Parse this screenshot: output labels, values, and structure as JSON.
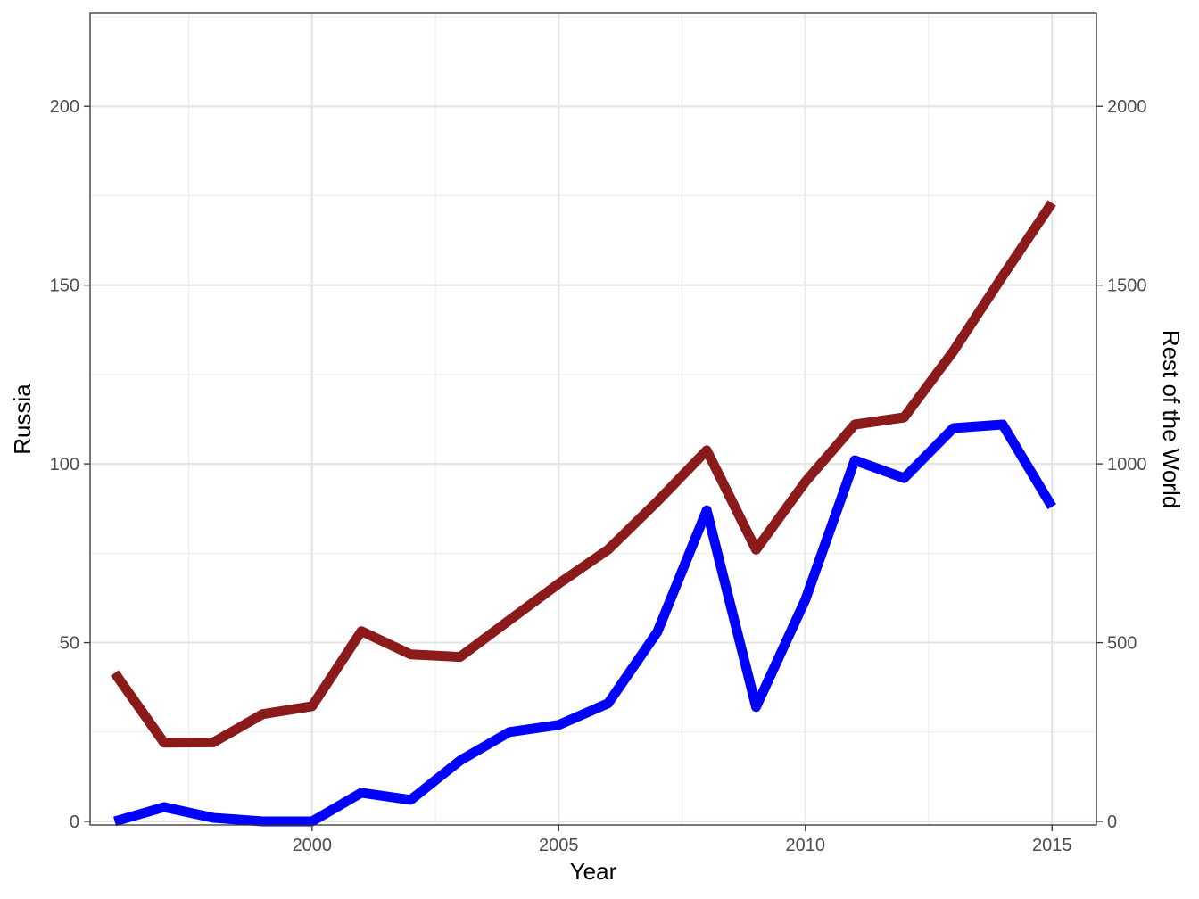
{
  "chart_data": {
    "type": "line",
    "xlabel": "Year",
    "ylabel_left": "Russia",
    "ylabel_right": "Rest of the World",
    "xlim": [
      1995.5,
      2015.9
    ],
    "xticks": [
      2000,
      2005,
      2010,
      2015
    ],
    "ylim_left": [
      -1,
      226
    ],
    "yticks_left": [
      0,
      50,
      100,
      150,
      200
    ],
    "ylim_right": [
      -10,
      2260
    ],
    "yticks_right": [
      0,
      500,
      1000,
      1500,
      2000
    ],
    "grid": true,
    "legend": "none",
    "x": [
      1996,
      1997,
      1998,
      1999,
      2000,
      2001,
      2002,
      2003,
      2004,
      2005,
      2006,
      2007,
      2008,
      2009,
      2010,
      2011,
      2012,
      2013,
      2014,
      2015
    ],
    "series": [
      {
        "axis": "left",
        "color": "#0000ff",
        "values": [
          0,
          4,
          1,
          0,
          0,
          8,
          6,
          17,
          25,
          27,
          33,
          53,
          87,
          32,
          62,
          101,
          96,
          110,
          111,
          88
        ]
      },
      {
        "axis": "right",
        "color": "#8b1a1a",
        "values": [
          415,
          220,
          221,
          300,
          322,
          532,
          467,
          460,
          563,
          665,
          760,
          895,
          1038,
          760,
          950,
          1110,
          1130,
          1315,
          1525,
          1730
        ]
      }
    ]
  }
}
